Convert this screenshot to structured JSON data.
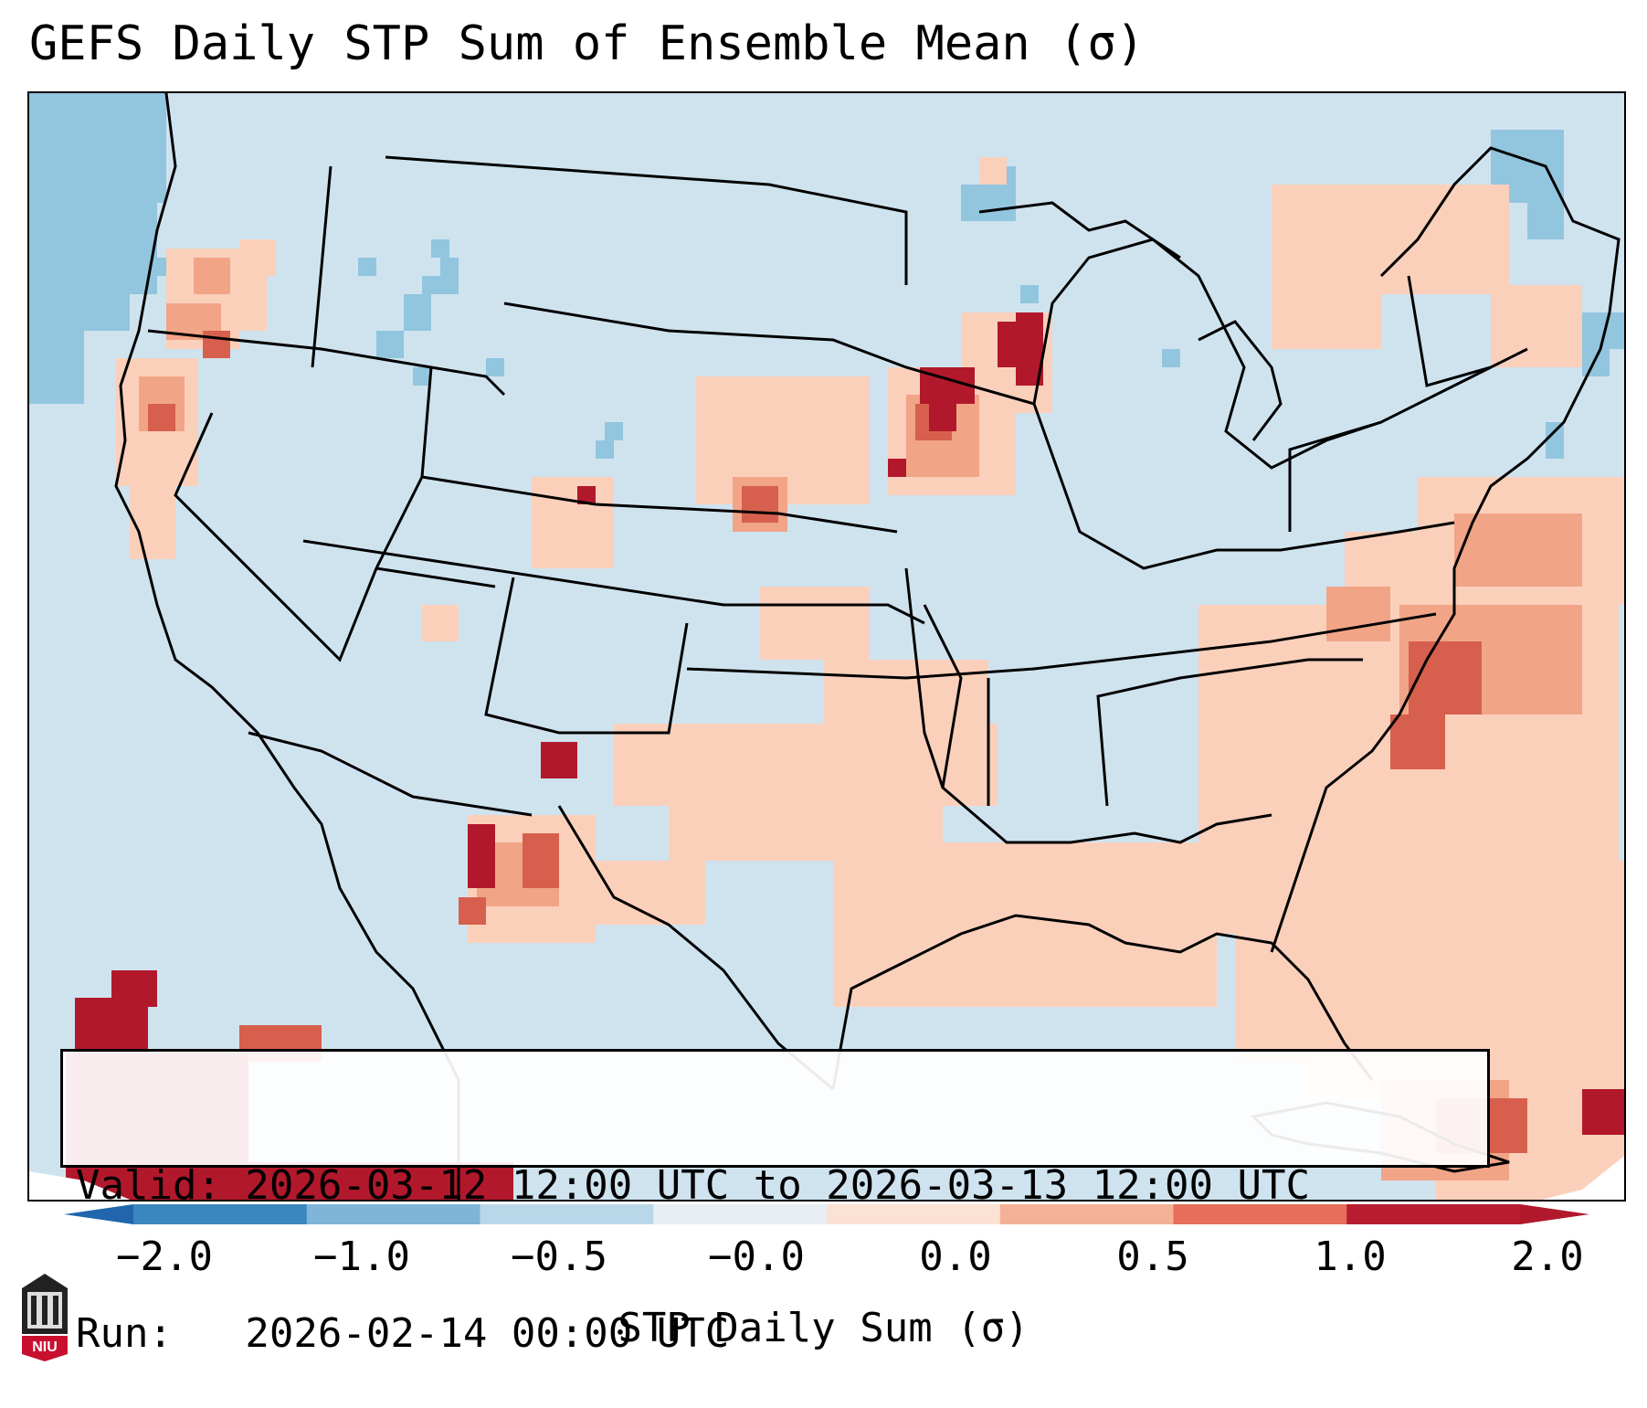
{
  "title": "GEFS Daily STP Sum of Ensemble Mean (σ)",
  "info": {
    "valid_line": "Valid: 2026-03-12 12:00 UTC to 2026-03-13 12:00 UTC",
    "run_line": "Run:   2026-02-14 00:00 UTC"
  },
  "colorbar": {
    "label": "STP Daily Sum (σ)",
    "tick_labels": [
      "−2.0",
      "−1.0",
      "−0.5",
      "−0.0",
      "0.0",
      "0.5",
      "1.0",
      "2.0"
    ],
    "colors": [
      "#3a86bf",
      "#7fb5d8",
      "#b9d7e9",
      "#e7eff4",
      "#fbe2d5",
      "#f5b196",
      "#e56f5b",
      "#b71c2f"
    ],
    "under_color": "#2166ac",
    "over_color": "#b2182b"
  },
  "map": {
    "background_color": "#cfe3ef",
    "legend_colors": {
      "light_pos": "#fbd0bb",
      "mid_pos": "#f2a487",
      "strong_pos": "#d6604d",
      "extreme_pos": "#b2182b",
      "light_neg": "#92c5de",
      "mid_neg": "#6fa9cf"
    }
  },
  "logo": {
    "text": "NIU"
  }
}
